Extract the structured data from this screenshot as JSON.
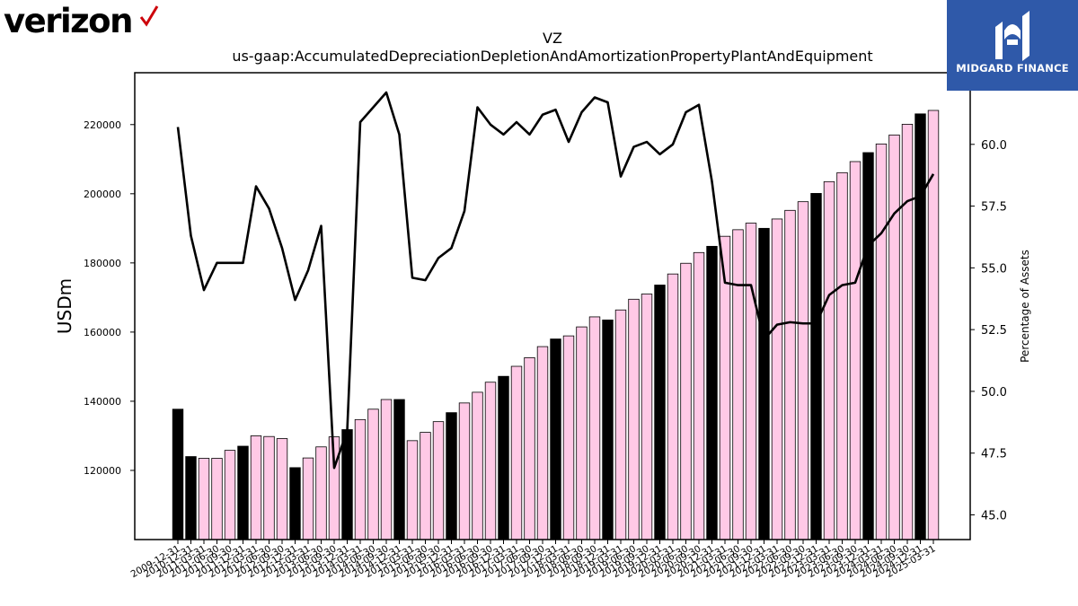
{
  "logos": {
    "brand_left": "verizon",
    "brand_right": "MIDGARD FINANCE",
    "check_color": "#cd040b",
    "right_bg": "#2f59a9"
  },
  "chart_data": {
    "type": "bar",
    "title": "VZ",
    "subtitle": "us-gaap:AccumulatedDepreciationDepletionAndAmortizationPropertyPlantAndEquipment",
    "ylabel": "USDm",
    "y2label": "Percentage of Assets",
    "ylim": [
      100000,
      235000
    ],
    "y2lim": [
      44.0,
      62.9
    ],
    "yticks": [
      "120000",
      "140000",
      "160000",
      "180000",
      "200000",
      "220000"
    ],
    "y2ticks": [
      "45.0",
      "47.5",
      "50.0",
      "52.5",
      "55.0",
      "57.5",
      "60.0"
    ],
    "bar_colors": {
      "annual": "#000000",
      "quarterly": "#ffc9e6"
    },
    "categories": [
      "2009-12-31",
      "2010-12-31",
      "2011-03-31",
      "2011-06-30",
      "2011-09-30",
      "2011-12-31",
      "2012-03-31",
      "2012-06-30",
      "2012-09-30",
      "2012-12-31",
      "2013-03-31",
      "2013-06-30",
      "2013-09-30",
      "2013-12-31",
      "2014-03-31",
      "2014-06-30",
      "2014-09-30",
      "2014-12-31",
      "2015-03-31",
      "2015-06-30",
      "2015-09-30",
      "2015-12-31",
      "2016-03-31",
      "2016-06-30",
      "2016-09-30",
      "2016-12-31",
      "2017-03-31",
      "2017-06-30",
      "2017-09-30",
      "2017-12-31",
      "2018-03-31",
      "2018-06-30",
      "2018-09-30",
      "2018-12-31",
      "2019-03-31",
      "2019-06-30",
      "2019-09-30",
      "2019-12-31",
      "2020-03-31",
      "2020-06-30",
      "2020-09-30",
      "2020-12-31",
      "2021-03-31",
      "2021-06-30",
      "2021-09-30",
      "2021-12-31",
      "2022-03-31",
      "2022-06-30",
      "2022-09-30",
      "2022-12-31",
      "2023-03-31",
      "2023-06-30",
      "2023-09-30",
      "2023-12-31",
      "2024-03-31",
      "2024-06-30",
      "2024-09-30",
      "2024-12-31",
      "2025-03-31"
    ],
    "annual": [
      true,
      true,
      false,
      false,
      false,
      true,
      false,
      false,
      false,
      true,
      false,
      false,
      false,
      true,
      false,
      false,
      false,
      true,
      false,
      false,
      false,
      true,
      false,
      false,
      false,
      true,
      false,
      false,
      false,
      true,
      false,
      false,
      false,
      true,
      false,
      false,
      false,
      true,
      false,
      false,
      false,
      true,
      false,
      false,
      false,
      true,
      false,
      false,
      false,
      true,
      false,
      false,
      false,
      true,
      false,
      false,
      false,
      true,
      false
    ],
    "series": [
      {
        "name": "USDm",
        "values": [
          137700,
          124000,
          123500,
          123500,
          125800,
          127000,
          130000,
          129800,
          129200,
          120800,
          123600,
          126800,
          129700,
          131800,
          134700,
          137700,
          140500,
          140500,
          128600,
          131000,
          134100,
          136700,
          139500,
          142600,
          145500,
          147200,
          150100,
          152600,
          155800,
          158000,
          158900,
          161500,
          164400,
          163500,
          166400,
          169500,
          171000,
          173600,
          176800,
          179900,
          183000,
          184800,
          187700,
          189600,
          191500,
          190000,
          192700,
          195200,
          197700,
          200100,
          203500,
          206100,
          209300,
          211900,
          214400,
          217000,
          220100,
          223100,
          224100
        ]
      },
      {
        "name": "Percentage of Assets",
        "values": [
          60.7,
          56.3,
          54.1,
          55.2,
          55.2,
          55.2,
          58.3,
          57.4,
          55.8,
          53.7,
          54.9,
          56.7,
          46.9,
          48.4,
          60.9,
          61.5,
          62.1,
          60.4,
          54.6,
          54.5,
          55.4,
          55.8,
          57.3,
          61.5,
          60.8,
          60.4,
          60.9,
          60.4,
          61.2,
          61.4,
          60.1,
          61.3,
          61.9,
          61.7,
          58.7,
          59.9,
          60.1,
          59.6,
          60.0,
          61.3,
          61.6,
          58.5,
          54.4,
          54.3,
          54.3,
          52.1,
          52.7,
          52.8,
          52.75,
          52.75,
          53.9,
          54.3,
          54.4,
          55.9,
          56.4,
          57.2,
          57.7,
          57.9,
          58.8
        ]
      }
    ]
  }
}
